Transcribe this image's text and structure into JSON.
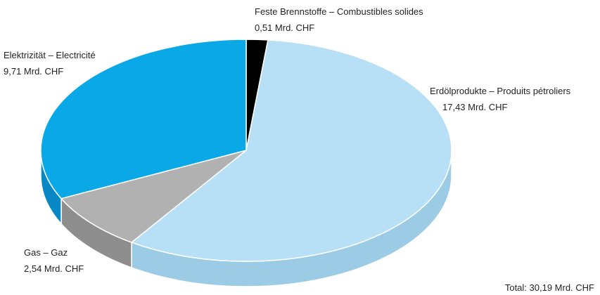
{
  "chart_data": {
    "type": "pie",
    "style": "3d",
    "unit": "Mrd. CHF",
    "slices": [
      {
        "label": "Feste Brennstoffe – Combustibles solides",
        "value_text": "0,51 Mrd. CHF",
        "value": 0.51,
        "color": "#000000",
        "side_color": "#000000"
      },
      {
        "label": "Erdölprodukte – Produits pétroliers",
        "value_text": "17,43 Mrd. CHF",
        "value": 17.43,
        "color": "#b7dff5",
        "side_color": "#9ccbe6"
      },
      {
        "label": "Gas – Gaz",
        "value_text": "2,54 Mrd. CHF",
        "value": 2.54,
        "color": "#b1b1b1",
        "side_color": "#8e8e8e"
      },
      {
        "label": "Elektrizität – Electricité",
        "value_text": "9,71 Mrd. CHF",
        "value": 9.71,
        "color": "#0aa8e6",
        "side_color": "#0788c4"
      }
    ],
    "total_text": "Total: 30,19 Mrd. CHF",
    "total": 30.19
  }
}
